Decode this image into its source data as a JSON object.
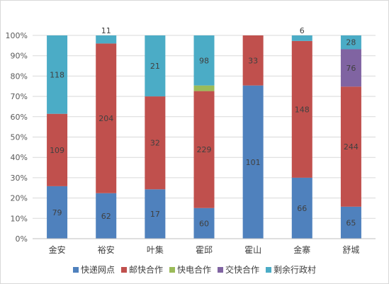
{
  "chart_data": {
    "type": "bar",
    "stacked": "percent",
    "categories": [
      "金安",
      "裕安",
      "叶集",
      "霍邱",
      "霍山",
      "金寨",
      "舒城"
    ],
    "series": [
      {
        "name": "快递网点",
        "color": "#4f81bd",
        "values": [
          79,
          62,
          17,
          60,
          101,
          66,
          65
        ]
      },
      {
        "name": "邮快合作",
        "color": "#c0504d",
        "values": [
          109,
          204,
          32,
          229,
          33,
          148,
          244
        ]
      },
      {
        "name": "快电合作",
        "color": "#9bbb59",
        "values": [
          0,
          0,
          0,
          11,
          0,
          0,
          0
        ]
      },
      {
        "name": "交快合作",
        "color": "#8064a2",
        "values": [
          0,
          0,
          0,
          0,
          0,
          0,
          76
        ]
      },
      {
        "name": "剩余行政村",
        "color": "#4bacc6",
        "values": [
          118,
          11,
          21,
          98,
          0,
          6,
          28
        ]
      }
    ],
    "yaxis": {
      "min": 0,
      "max": 100,
      "step": 10,
      "tick_format": "{v}%"
    },
    "grid": true,
    "legend_position": "bottom"
  }
}
